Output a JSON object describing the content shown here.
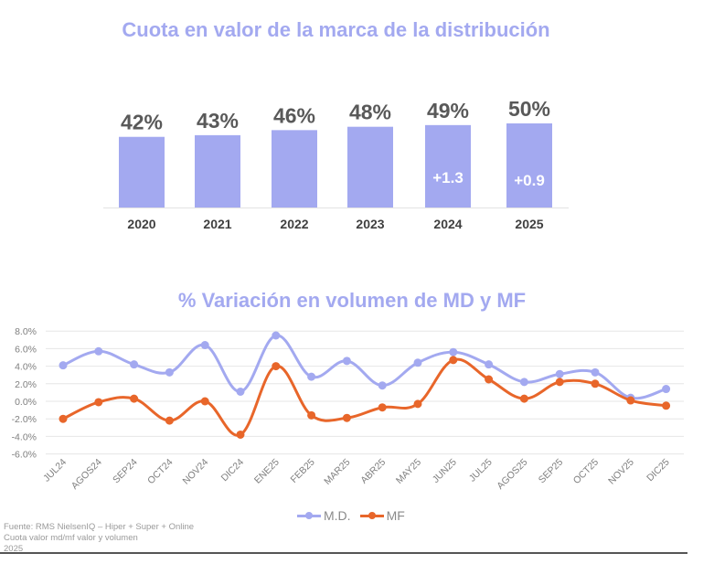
{
  "chart_data": [
    {
      "type": "bar",
      "title": "Cuota en valor de la marca de la distribución",
      "categories": [
        "2020",
        "2021",
        "2022",
        "2023",
        "2024",
        "2025"
      ],
      "values": [
        42,
        43,
        46,
        48,
        49,
        50
      ],
      "value_labels": [
        "42%",
        "43%",
        "46%",
        "48%",
        "49%",
        "50%"
      ],
      "inner_labels": [
        "",
        "",
        "",
        "",
        "+1.3",
        "+0.9"
      ],
      "xlabel": "",
      "ylabel": "",
      "ylim": [
        0,
        50
      ],
      "grid": false,
      "colors": {
        "bar": "#a3a9f0",
        "value_label": "#595959",
        "inner_label": "#ffffff",
        "axis_label": "#404040"
      }
    },
    {
      "type": "line",
      "title": "% Variación en volumen de MD y MF",
      "categories": [
        "JUL24",
        "AGOS24",
        "SEP24",
        "OCT24",
        "NOV24",
        "DIC24",
        "ENE25",
        "FEB25",
        "MAR25",
        "ABR25",
        "MAY25",
        "JUN25",
        "JUL25",
        "AGOS25",
        "SEP25",
        "OCT25",
        "NOV25",
        "DIC25"
      ],
      "series": [
        {
          "name": "M.D.",
          "color": "#a3a9f0",
          "values": [
            4.1,
            5.7,
            4.2,
            3.3,
            6.4,
            1.1,
            7.5,
            2.8,
            4.6,
            1.8,
            4.4,
            5.6,
            4.2,
            2.2,
            3.1,
            3.3,
            0.4,
            1.4
          ]
        },
        {
          "name": "MF",
          "color": "#e8662a",
          "values": [
            -2.0,
            -0.1,
            0.3,
            -2.2,
            0.0,
            -3.8,
            4.0,
            -1.6,
            -1.9,
            -0.7,
            -0.3,
            4.7,
            2.5,
            0.3,
            2.2,
            2.0,
            0.1,
            -0.5
          ]
        }
      ],
      "yticks": [
        "-6.0%",
        "-4.0%",
        "-2.0%",
        "0.0%",
        "2.0%",
        "4.0%",
        "6.0%",
        "8.0%"
      ],
      "ytick_values": [
        -6,
        -4,
        -2,
        0,
        2,
        4,
        6,
        8
      ],
      "ylim": [
        -6,
        8
      ],
      "xlabel": "",
      "ylabel": "",
      "grid": true,
      "legend": "bottom",
      "smooth": true
    }
  ],
  "source": {
    "line1": "Fuente: RMS NielsenIQ – Hiper + Super + Online",
    "line2": "Cuota valor md/mf valor y volumen",
    "line3": "2025"
  }
}
